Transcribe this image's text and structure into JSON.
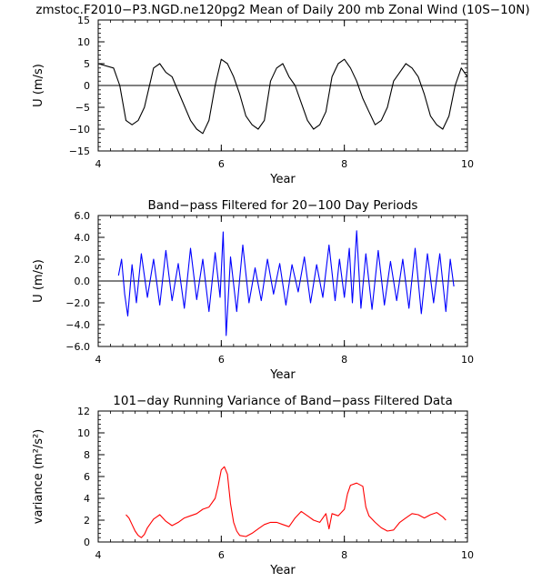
{
  "chart_data": [
    {
      "type": "line",
      "title": "zmstoc.F2010−P3.NGD.ne120pg2 Mean of Daily 200 mb Zonal Wind (10S−10N)",
      "xlabel": "Year",
      "ylabel": "U  (m/s)",
      "xlim": [
        4,
        10
      ],
      "ylim": [
        -15,
        15
      ],
      "xticks": [
        4,
        6,
        8,
        10
      ],
      "xtick_labels": [
        "4",
        "6",
        "8",
        "10"
      ],
      "yticks": [
        -15,
        -10,
        -5,
        0,
        5,
        10,
        15
      ],
      "ytick_labels": [
        "−15",
        "−10",
        "−5",
        "0",
        "5",
        "10",
        "15"
      ],
      "zero_line": true,
      "grid": false,
      "colors": {
        "line": "#000000"
      },
      "series": [
        {
          "x": [
            4.0,
            4.25,
            4.35,
            4.45,
            4.55,
            4.65,
            4.75,
            4.9,
            5.0,
            5.1,
            5.2,
            5.35,
            5.5,
            5.6,
            5.7,
            5.8,
            5.9,
            6.0,
            6.1,
            6.2,
            6.3,
            6.4,
            6.5,
            6.6,
            6.7,
            6.8,
            6.9,
            7.0,
            7.1,
            7.2,
            7.3,
            7.4,
            7.5,
            7.6,
            7.7,
            7.8,
            7.9,
            8.0,
            8.1,
            8.2,
            8.3,
            8.4,
            8.5,
            8.6,
            8.7,
            8.8,
            8.9,
            9.0,
            9.1,
            9.2,
            9.3,
            9.4,
            9.5,
            9.6,
            9.7,
            9.8,
            9.9,
            10.0
          ],
          "y": [
            5,
            4,
            0,
            -8,
            -9,
            -8,
            -5,
            4,
            5,
            3,
            2,
            -3,
            -8,
            -10,
            -11,
            -8,
            0,
            6,
            5,
            2,
            -2,
            -7,
            -9,
            -10,
            -8,
            1,
            4,
            5,
            2,
            0,
            -4,
            -8,
            -10,
            -9,
            -6,
            2,
            5,
            6,
            4,
            1,
            -3,
            -6,
            -9,
            -8,
            -5,
            1,
            3,
            5,
            4,
            2,
            -2,
            -7,
            -9,
            -10,
            -7,
            0,
            4,
            2
          ]
        }
      ]
    },
    {
      "type": "line",
      "title": "Band−pass Filtered for 20−100 Day Periods",
      "xlabel": "Year",
      "ylabel": "U  (m/s)",
      "xlim": [
        4,
        10
      ],
      "ylim": [
        -6,
        6
      ],
      "xticks": [
        4,
        6,
        8,
        10
      ],
      "xtick_labels": [
        "4",
        "6",
        "8",
        "10"
      ],
      "yticks": [
        -6,
        -4,
        -2,
        0,
        2,
        4,
        6
      ],
      "ytick_labels": [
        "−6.0",
        "−4.0",
        "−2.0",
        "0.0",
        "2.0",
        "4.0",
        "6.0"
      ],
      "zero_line": true,
      "grid": false,
      "colors": {
        "line": "#0000ff"
      },
      "series": [
        {
          "x": [
            4.33,
            4.38,
            4.43,
            4.48,
            4.55,
            4.62,
            4.7,
            4.8,
            4.9,
            5.0,
            5.1,
            5.2,
            5.3,
            5.4,
            5.5,
            5.6,
            5.7,
            5.8,
            5.9,
            5.98,
            6.03,
            6.08,
            6.15,
            6.25,
            6.35,
            6.45,
            6.55,
            6.65,
            6.75,
            6.85,
            6.95,
            7.05,
            7.15,
            7.25,
            7.35,
            7.45,
            7.55,
            7.65,
            7.75,
            7.85,
            7.92,
            8.0,
            8.08,
            8.13,
            8.2,
            8.27,
            8.35,
            8.45,
            8.55,
            8.65,
            8.75,
            8.85,
            8.95,
            9.05,
            9.15,
            9.25,
            9.35,
            9.45,
            9.55,
            9.65,
            9.72,
            9.78
          ],
          "y": [
            0.5,
            2.0,
            -1.2,
            -3.2,
            1.5,
            -2.0,
            2.5,
            -1.5,
            2.0,
            -2.2,
            2.8,
            -1.8,
            1.6,
            -2.5,
            3.0,
            -1.7,
            2.0,
            -2.8,
            2.6,
            -1.5,
            4.5,
            -5.0,
            2.2,
            -2.8,
            3.3,
            -2.0,
            1.2,
            -1.8,
            2.0,
            -1.2,
            1.6,
            -2.2,
            1.5,
            -1.0,
            2.2,
            -2.0,
            1.5,
            -1.5,
            3.3,
            -1.8,
            2.0,
            -1.5,
            3.0,
            -2.0,
            4.6,
            -2.5,
            2.5,
            -2.6,
            2.8,
            -2.2,
            1.8,
            -1.8,
            2.0,
            -2.5,
            3.0,
            -3.0,
            2.5,
            -2.0,
            2.5,
            -2.8,
            2.0,
            -0.5
          ]
        }
      ]
    },
    {
      "type": "line",
      "title": "101−day Running Variance of Band−pass Filtered Data",
      "xlabel": "Year",
      "ylabel": "variance  (m²/s²)",
      "xlim": [
        4,
        10
      ],
      "ylim": [
        0,
        12
      ],
      "xticks": [
        4,
        6,
        8,
        10
      ],
      "xtick_labels": [
        "4",
        "6",
        "8",
        "10"
      ],
      "yticks": [
        0,
        2,
        4,
        6,
        8,
        10,
        12
      ],
      "ytick_labels": [
        "0",
        "2",
        "4",
        "6",
        "8",
        "10",
        "12"
      ],
      "zero_line": false,
      "grid": false,
      "colors": {
        "line": "#ff0000"
      },
      "series": [
        {
          "x": [
            4.45,
            4.5,
            4.55,
            4.6,
            4.65,
            4.7,
            4.75,
            4.8,
            4.85,
            4.9,
            4.95,
            5.0,
            5.1,
            5.2,
            5.3,
            5.4,
            5.5,
            5.6,
            5.7,
            5.8,
            5.9,
            5.95,
            6.0,
            6.05,
            6.1,
            6.15,
            6.2,
            6.25,
            6.3,
            6.4,
            6.5,
            6.6,
            6.7,
            6.8,
            6.9,
            7.0,
            7.1,
            7.2,
            7.3,
            7.4,
            7.5,
            7.6,
            7.7,
            7.75,
            7.8,
            7.9,
            8.0,
            8.05,
            8.1,
            8.2,
            8.3,
            8.35,
            8.4,
            8.5,
            8.6,
            8.7,
            8.8,
            8.9,
            9.0,
            9.1,
            9.2,
            9.3,
            9.4,
            9.5,
            9.6,
            9.65
          ],
          "y": [
            2.5,
            2.2,
            1.6,
            1.0,
            0.6,
            0.4,
            0.7,
            1.3,
            1.7,
            2.1,
            2.3,
            2.5,
            1.9,
            1.5,
            1.8,
            2.2,
            2.4,
            2.6,
            3.0,
            3.2,
            4.0,
            5.2,
            6.6,
            6.9,
            6.2,
            3.5,
            1.8,
            1.0,
            0.6,
            0.5,
            0.8,
            1.2,
            1.6,
            1.8,
            1.8,
            1.6,
            1.4,
            2.2,
            2.8,
            2.4,
            2.0,
            1.8,
            2.6,
            1.2,
            2.6,
            2.4,
            3.0,
            4.4,
            5.2,
            5.4,
            5.1,
            3.2,
            2.4,
            1.8,
            1.3,
            1.0,
            1.1,
            1.8,
            2.2,
            2.6,
            2.5,
            2.2,
            2.5,
            2.7,
            2.3,
            2.0
          ]
        }
      ]
    }
  ]
}
